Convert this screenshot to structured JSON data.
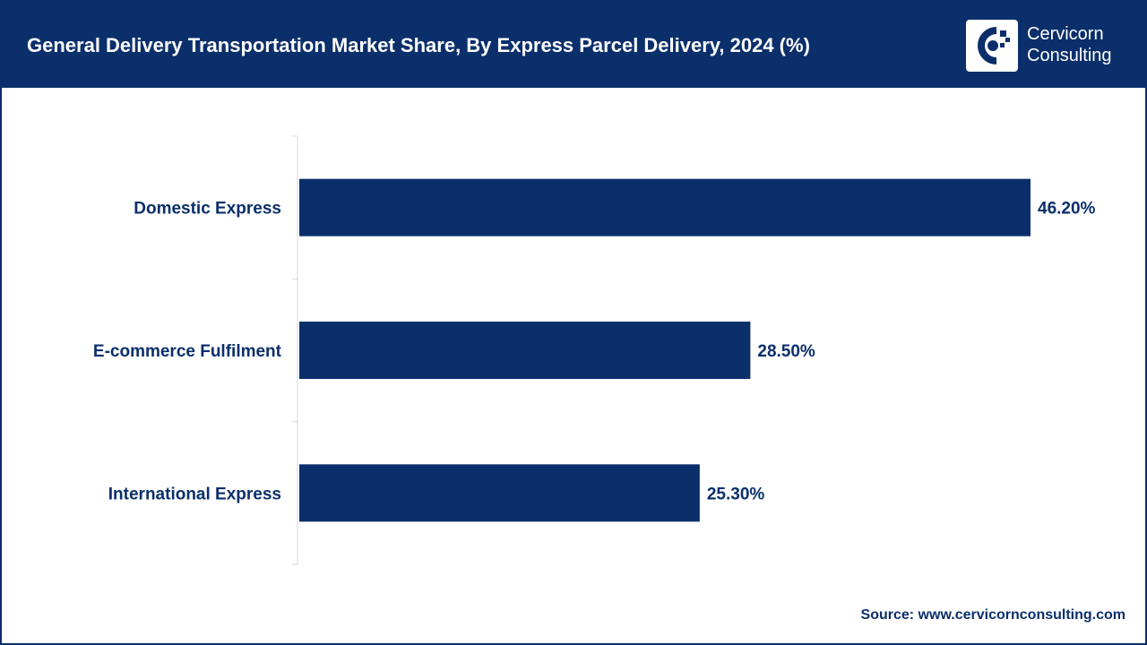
{
  "header": {
    "title": "General Delivery Transportation Market Share, By Express Parcel Delivery, 2024 (%)",
    "logo": {
      "line1": "Cervicorn",
      "line2": "Consulting"
    }
  },
  "chart_data": {
    "type": "bar",
    "orientation": "horizontal",
    "title": "General Delivery Transportation Market Share, By Express Parcel Delivery, 2024 (%)",
    "categories": [
      "Domestic Express",
      "E-commerce Fulfilment",
      "International Express"
    ],
    "values": [
      46.2,
      28.5,
      25.3
    ],
    "value_labels": [
      "46.20%",
      "28.50%",
      "25.30%"
    ],
    "xlim": [
      0,
      46.2
    ],
    "xlabel": "",
    "ylabel": "",
    "grid": false,
    "legend": "none",
    "bar_color": "#0b2f6b"
  },
  "footer": {
    "source": "Source: www.cervicornconsulting.com"
  }
}
